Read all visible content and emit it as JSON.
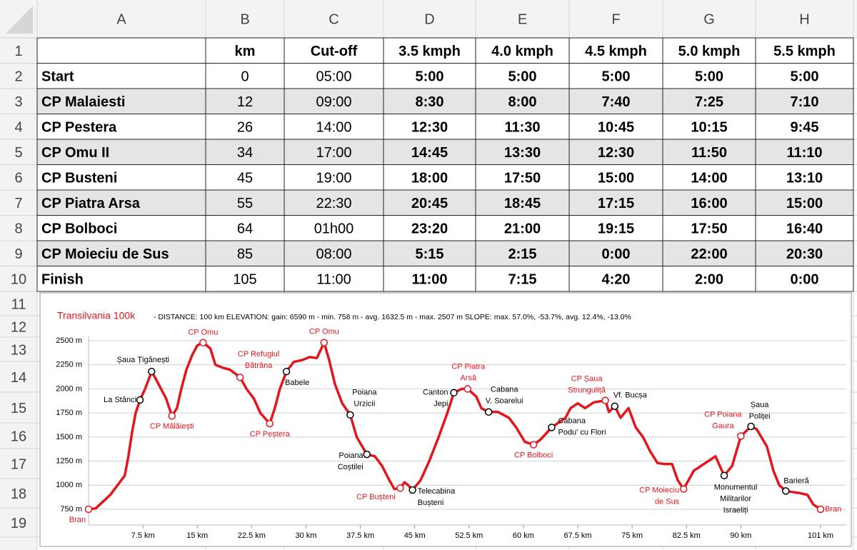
{
  "spreadsheet": {
    "columns": [
      "A",
      "B",
      "C",
      "D",
      "E",
      "F",
      "G",
      "H"
    ],
    "rows": [
      1,
      2,
      3,
      4,
      5,
      6,
      7,
      8,
      9,
      10,
      11,
      12,
      13,
      14,
      15,
      16,
      17,
      18,
      19
    ],
    "header": [
      "km",
      "Cut-off",
      "3.5 kmph",
      "4.0 kmph",
      "4.5 kmph",
      "5.0 kmph",
      "5.5 kmph"
    ],
    "table": [
      [
        "Start",
        0,
        "05:00",
        "5:00",
        "5:00",
        "5:00",
        "5:00",
        "5:00"
      ],
      [
        "CP Malaiesti",
        12,
        "09:00",
        "8:30",
        "8:00",
        "7:40",
        "7:25",
        "7:10"
      ],
      [
        "CP Pestera",
        26,
        "14:00",
        "12:30",
        "11:30",
        "10:45",
        "10:15",
        "9:45"
      ],
      [
        "CP Omu II",
        34,
        "17:00",
        "14:45",
        "13:30",
        "12:30",
        "11:50",
        "11:10"
      ],
      [
        "CP Busteni",
        45,
        "19:00",
        "18:00",
        "17:50",
        "15:00",
        "14:00",
        "13:10"
      ],
      [
        "CP Piatra Arsa",
        55,
        "22:30",
        "20:45",
        "18:45",
        "17:15",
        "16:00",
        "15:00"
      ],
      [
        "CP Bolboci",
        64,
        "01h00",
        "23:20",
        "21:00",
        "19:15",
        "17:50",
        "16:40"
      ],
      [
        "CP Moieciu de Sus",
        85,
        "08:00",
        "5:15",
        "2:15",
        "0:00",
        "22:00",
        "20:30"
      ],
      [
        "Finish",
        105,
        "11:00",
        "11:00",
        "7:15",
        "4:20",
        "2:00",
        "0:00"
      ]
    ]
  },
  "chart_data": {
    "type": "line",
    "title": "Transilvania 100k",
    "subtitle": "- DISTANCE: 100 km   ELEVATION:  gain: 6590 m - min. 758 m - avg. 1632.5 m - max. 2507 m     SLOPE: max. 57.0%, -53.7%, avg. 12.4%, -13.0%",
    "xlim": [
      0,
      101
    ],
    "ylim": [
      750,
      2500
    ],
    "grid": true,
    "xticks": [
      {
        "value": 7.5,
        "label": "7.5 km"
      },
      {
        "value": 15,
        "label": "15 km"
      },
      {
        "value": 22.5,
        "label": "22.5 km"
      },
      {
        "value": 30,
        "label": "30 km"
      },
      {
        "value": 37.5,
        "label": "37.5 km"
      },
      {
        "value": 45,
        "label": "45 km"
      },
      {
        "value": 52.5,
        "label": "52.5 km"
      },
      {
        "value": 60,
        "label": "60 km"
      },
      {
        "value": 67.5,
        "label": "67.5 km"
      },
      {
        "value": 75,
        "label": "75 km"
      },
      {
        "value": 82.5,
        "label": "82.5 km"
      },
      {
        "value": 90,
        "label": "90 km"
      },
      {
        "value": 101,
        "label": "101 km"
      }
    ],
    "yticks": [
      {
        "value": 750,
        "label": "750 m"
      },
      {
        "value": 1000,
        "label": "1000 m"
      },
      {
        "value": 1250,
        "label": "1250 m"
      },
      {
        "value": 1500,
        "label": "1500 m"
      },
      {
        "value": 1750,
        "label": "1750 m"
      },
      {
        "value": 2000,
        "label": "2000 m"
      },
      {
        "value": 2250,
        "label": "2250 m"
      },
      {
        "value": 2500,
        "label": "2500 m"
      }
    ],
    "x": [
      0,
      1,
      2,
      3,
      4,
      5,
      5.5,
      6,
      6.5,
      7.1,
      7.8,
      8.7,
      9.3,
      10,
      10.7,
      11.5,
      12.2,
      12.8,
      13.5,
      14.3,
      15,
      15.8,
      16.8,
      17.5,
      18.5,
      19.5,
      20.9,
      21.8,
      22.8,
      23.7,
      25,
      25.7,
      26.4,
      27.3,
      28.3,
      29.5,
      30.5,
      31.5,
      32.5,
      33.2,
      34,
      35,
      36.1,
      37,
      38.4,
      39.5,
      40.5,
      41.5,
      42.2,
      43,
      43.6,
      44.1,
      44.7,
      45.8,
      47,
      48.3,
      49.5,
      50.4,
      51.5,
      52.3,
      53.5,
      54.2,
      55.2,
      56.5,
      58,
      59,
      60.2,
      61.4,
      62.3,
      63.9,
      65.8,
      66.5,
      67.5,
      68.5,
      69.7,
      71.3,
      71.8,
      72.6,
      73.4,
      74.5,
      75.5,
      76.5,
      77.5,
      78.5,
      79.5,
      80.5,
      81.3,
      82.1,
      83.5,
      84.5,
      85.5,
      86.5,
      87.7,
      88.8,
      90,
      91.4,
      92.2,
      93.6,
      94.5,
      95.3,
      96.2,
      97,
      98,
      99.2,
      100,
      101
    ],
    "series": [
      {
        "color": "#e3161d",
        "values": [
          750,
          760,
          830,
          900,
          1000,
          1100,
          1300,
          1550,
          1750,
          1885,
          2000,
          2180,
          2100,
          2000,
          1900,
          1720,
          1800,
          2000,
          2200,
          2350,
          2450,
          2480,
          2420,
          2250,
          2220,
          2200,
          2120,
          2000,
          1900,
          1750,
          1640,
          1800,
          2000,
          2180,
          2280,
          2300,
          2330,
          2320,
          2480,
          2300,
          2050,
          1850,
          1730,
          1500,
          1320,
          1300,
          1200,
          1050,
          960,
          970,
          1030,
          1000,
          950,
          1050,
          1250,
          1500,
          1750,
          1960,
          2000,
          2000,
          1920,
          1800,
          1760,
          1760,
          1700,
          1600,
          1450,
          1420,
          1470,
          1600,
          1700,
          1800,
          1850,
          1800,
          1860,
          1880,
          1760,
          1820,
          1700,
          1800,
          1600,
          1500,
          1350,
          1230,
          1220,
          1220,
          1050,
          960,
          1150,
          1200,
          1250,
          1300,
          1100,
          1200,
          1510,
          1610,
          1580,
          1400,
          1150,
          1000,
          940,
          930,
          920,
          900,
          800,
          750
        ]
      }
    ],
    "waypoints": [
      {
        "label": [
          "Bran"
        ],
        "km": 0,
        "elev": 750,
        "color": "#e3161d"
      },
      {
        "label": [
          "La Stânci"
        ],
        "km": 7.1,
        "elev": 1885,
        "color": "#000000"
      },
      {
        "label": [
          "Șaua Țigănești"
        ],
        "km": 8.7,
        "elev": 2180,
        "color": "#000000"
      },
      {
        "label": [
          "CP Mălăiești"
        ],
        "km": 11.5,
        "elev": 1720,
        "color": "#e3161d"
      },
      {
        "label": [
          "CP Omu"
        ],
        "km": 15.8,
        "elev": 2480,
        "color": "#e3161d"
      },
      {
        "label": [
          "CP Refugiul",
          "Bătrâna"
        ],
        "km": 20.9,
        "elev": 2120,
        "color": "#e3161d"
      },
      {
        "label": [
          "CP Peștera"
        ],
        "km": 25,
        "elev": 1640,
        "color": "#e3161d"
      },
      {
        "label": [
          "Babele"
        ],
        "km": 27.3,
        "elev": 2180,
        "color": "#000000"
      },
      {
        "label": [
          "CP Omu"
        ],
        "km": 32.5,
        "elev": 2480,
        "color": "#e3161d"
      },
      {
        "label": [
          "Poiana",
          "Urzicii"
        ],
        "km": 36.1,
        "elev": 1730,
        "color": "#000000"
      },
      {
        "label": [
          "Poiana",
          "Coștilei"
        ],
        "km": 38.4,
        "elev": 1320,
        "color": "#000000"
      },
      {
        "label": [
          "CP Bușteni"
        ],
        "km": 43,
        "elev": 970,
        "color": "#e3161d"
      },
      {
        "label": [
          "Telecabina",
          "Bușteni"
        ],
        "km": 44.7,
        "elev": 950,
        "color": "#000000"
      },
      {
        "label": [
          "Canton",
          "Jepi"
        ],
        "km": 50.4,
        "elev": 1960,
        "color": "#000000"
      },
      {
        "label": [
          "CP Piatra",
          "Arsă"
        ],
        "km": 52.3,
        "elev": 2000,
        "color": "#e3161d"
      },
      {
        "label": [
          "Cabana",
          "V. Soarelui"
        ],
        "km": 55.2,
        "elev": 1760,
        "color": "#000000"
      },
      {
        "label": [
          "CP Bolboci"
        ],
        "km": 61.4,
        "elev": 1420,
        "color": "#e3161d"
      },
      {
        "label": [
          "Cabana",
          "Podu' cu Flori"
        ],
        "km": 63.9,
        "elev": 1600,
        "color": "#000000"
      },
      {
        "label": [
          "CP Șaua",
          "Strunguliță"
        ],
        "km": 71.3,
        "elev": 1880,
        "color": "#e3161d"
      },
      {
        "label": [
          "Vf. Bucșa"
        ],
        "km": 72.6,
        "elev": 1820,
        "color": "#000000"
      },
      {
        "label": [
          "CP Moieciu",
          "de Sus"
        ],
        "km": 82.1,
        "elev": 960,
        "color": "#e3161d"
      },
      {
        "label": [
          "Monumentul",
          "Militarilor",
          "Israeliți"
        ],
        "km": 87.7,
        "elev": 1100,
        "color": "#000000"
      },
      {
        "label": [
          "CP Poiana",
          "Gaura"
        ],
        "km": 90,
        "elev": 1510,
        "color": "#e3161d"
      },
      {
        "label": [
          "Șaua",
          "Poliței"
        ],
        "km": 91.4,
        "elev": 1610,
        "color": "#000000"
      },
      {
        "label": [
          "Barieră"
        ],
        "km": 96.2,
        "elev": 940,
        "color": "#000000"
      },
      {
        "label": [
          "Bran"
        ],
        "km": 101,
        "elev": 750,
        "color": "#e3161d"
      }
    ]
  }
}
